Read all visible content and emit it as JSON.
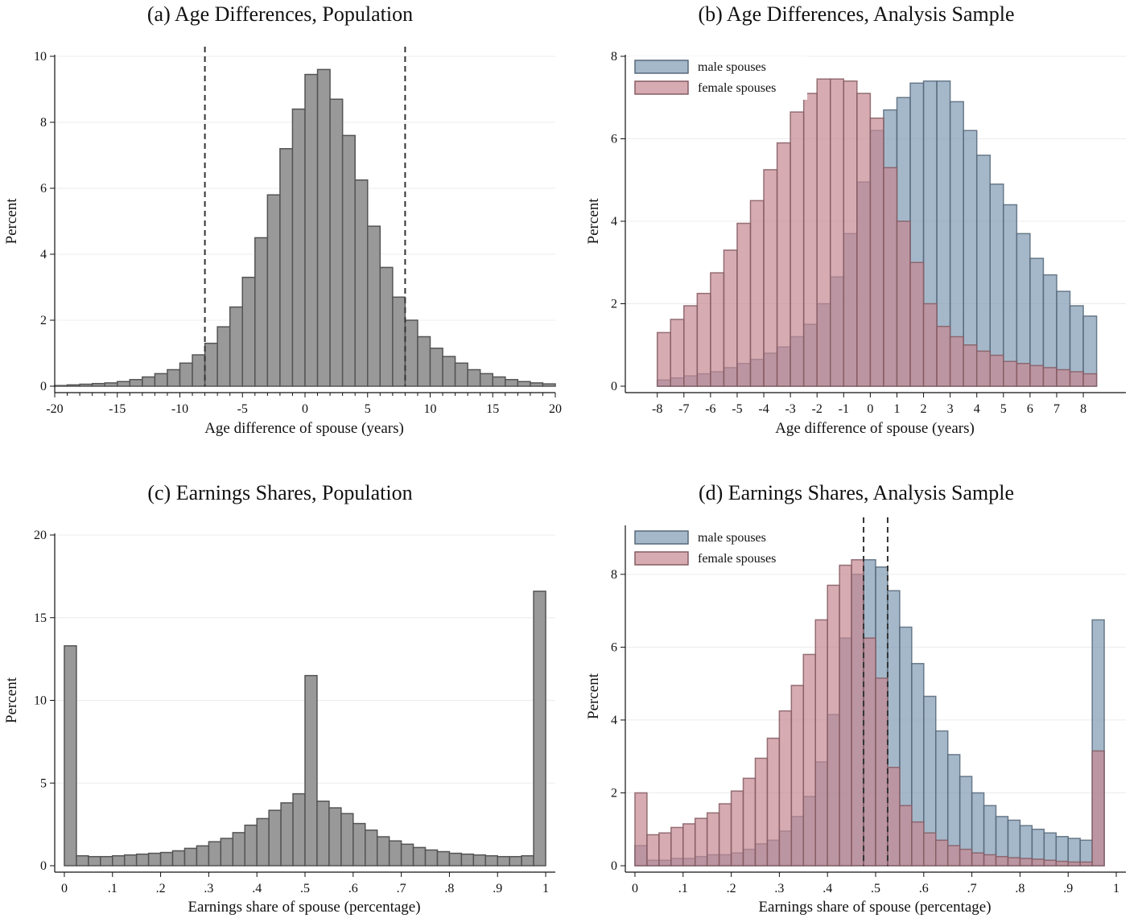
{
  "chart_data": [
    {
      "id": "a",
      "type": "bar",
      "title": "(a) Age Differences, Population",
      "xlabel": "Age difference of spouse (years)",
      "ylabel": "Percent",
      "xlim": [
        -20,
        20
      ],
      "ylim": [
        0,
        10
      ],
      "xticks": [
        -20,
        -15,
        -10,
        -5,
        0,
        5,
        10,
        15,
        20
      ],
      "xtick_labels": [
        "-20",
        "-15",
        "-10",
        "-5",
        "0",
        "5",
        "10",
        "15",
        "20"
      ],
      "yticks": [
        0,
        2,
        4,
        6,
        8,
        10
      ],
      "ytick_labels": [
        "0",
        "2",
        "4",
        "6",
        "8",
        "10"
      ],
      "grid": true,
      "minor_xticks": true,
      "vlines": [
        -8,
        8
      ],
      "bin_start": -20,
      "bin_width": 1,
      "series": [
        {
          "color": "#999999",
          "values": [
            0.02,
            0.04,
            0.06,
            0.08,
            0.1,
            0.14,
            0.2,
            0.28,
            0.38,
            0.5,
            0.7,
            0.95,
            1.3,
            1.8,
            2.4,
            3.3,
            4.5,
            5.8,
            7.2,
            8.4,
            9.45,
            9.6,
            8.7,
            7.6,
            6.25,
            4.85,
            3.6,
            2.7,
            2.0,
            1.5,
            1.15,
            0.9,
            0.7,
            0.5,
            0.38,
            0.28,
            0.2,
            0.14,
            0.1,
            0.07
          ]
        }
      ]
    },
    {
      "id": "b",
      "type": "bar",
      "title": "(b) Age Differences, Analysis Sample",
      "xlabel": "Age difference of spouse (years)",
      "ylabel": "Percent",
      "xlim": [
        -9.2,
        9.6
      ],
      "ylim": [
        0,
        8
      ],
      "xticks": [
        -8,
        -7,
        -6,
        -5,
        -4,
        -3,
        -2,
        -1,
        0,
        1,
        2,
        3,
        4,
        5,
        6,
        7,
        8
      ],
      "xtick_labels": [
        "-8",
        "-7",
        "-6",
        "-5",
        "-4",
        "-3",
        "-2",
        "-1",
        "0",
        "1",
        "2",
        "3",
        "4",
        "5",
        "6",
        "7",
        "8"
      ],
      "yticks": [
        0,
        2,
        4,
        6,
        8
      ],
      "ytick_labels": [
        "0",
        "2",
        "4",
        "6",
        "8"
      ],
      "grid": true,
      "bin_start": -8,
      "bin_width": 0.5,
      "legend_position": "top-left",
      "series": [
        {
          "name": "male spouses",
          "color": "#7f9ab3",
          "values": [
            0.15,
            0.2,
            0.25,
            0.3,
            0.35,
            0.45,
            0.55,
            0.65,
            0.8,
            0.95,
            1.2,
            1.5,
            2.0,
            2.65,
            3.7,
            4.95,
            6.2,
            6.7,
            7.0,
            7.35,
            7.4,
            7.4,
            6.9,
            6.2,
            5.6,
            4.9,
            4.4,
            3.7,
            3.1,
            2.7,
            2.3,
            1.95,
            1.7
          ]
        },
        {
          "name": "female spouses",
          "color": "#c48891",
          "values": [
            1.3,
            1.62,
            1.95,
            2.25,
            2.75,
            3.3,
            3.95,
            4.5,
            5.25,
            5.9,
            6.65,
            7.1,
            7.45,
            7.45,
            7.4,
            7.1,
            6.5,
            5.3,
            4.0,
            3.0,
            2.0,
            1.45,
            1.2,
            1.0,
            0.85,
            0.75,
            0.6,
            0.55,
            0.5,
            0.45,
            0.4,
            0.35,
            0.3
          ]
        }
      ]
    },
    {
      "id": "c",
      "type": "bar",
      "title": "(c) Earnings Shares, Population",
      "xlabel": "Earnings share of spouse (percentage)",
      "ylabel": "Percent",
      "xlim": [
        -0.02,
        1.02
      ],
      "ylim": [
        0,
        20
      ],
      "xticks": [
        0,
        0.1,
        0.2,
        0.3,
        0.4,
        0.5,
        0.6,
        0.7,
        0.8,
        0.9,
        1
      ],
      "xtick_labels": [
        "0",
        ".1",
        ".2",
        ".3",
        ".4",
        ".5",
        ".6",
        ".7",
        ".8",
        ".9",
        "1"
      ],
      "yticks": [
        0,
        5,
        10,
        15,
        20
      ],
      "ytick_labels": [
        "0",
        "5",
        "10",
        "15",
        "20"
      ],
      "grid": true,
      "bin_start": 0,
      "bin_width": 0.025,
      "series": [
        {
          "color": "#999999",
          "values": [
            13.3,
            0.6,
            0.55,
            0.55,
            0.6,
            0.65,
            0.7,
            0.75,
            0.8,
            0.9,
            1.05,
            1.2,
            1.45,
            1.65,
            2.0,
            2.45,
            2.85,
            3.35,
            3.8,
            4.35,
            11.5,
            3.9,
            3.5,
            3.15,
            2.55,
            2.15,
            1.75,
            1.5,
            1.3,
            1.1,
            0.95,
            0.85,
            0.75,
            0.7,
            0.65,
            0.6,
            0.55,
            0.55,
            0.6,
            16.6
          ]
        }
      ]
    },
    {
      "id": "d",
      "type": "bar",
      "title": "(d) Earnings Shares, Analysis Sample",
      "xlabel": "Earnings share of spouse (percentage)",
      "ylabel": "Percent",
      "xlim": [
        -0.02,
        1.02
      ],
      "ylim": [
        0,
        9.3
      ],
      "xticks": [
        0,
        0.1,
        0.2,
        0.3,
        0.4,
        0.5,
        0.6,
        0.7,
        0.8,
        0.9,
        1
      ],
      "xtick_labels": [
        "0",
        ".1",
        ".2",
        ".3",
        ".4",
        ".5",
        ".6",
        ".7",
        ".8",
        ".9",
        "1"
      ],
      "yticks": [
        0,
        2,
        4,
        6,
        8
      ],
      "ytick_labels": [
        "0",
        "2",
        "4",
        "6",
        "8"
      ],
      "grid": true,
      "vlines": [
        0.475,
        0.525
      ],
      "bin_start": 0,
      "bin_width": 0.025,
      "legend_position": "top-left",
      "series": [
        {
          "name": "male spouses",
          "color": "#7f9ab3",
          "values": [
            0.55,
            0.15,
            0.15,
            0.2,
            0.2,
            0.25,
            0.3,
            0.3,
            0.35,
            0.45,
            0.6,
            0.7,
            0.95,
            1.35,
            1.9,
            2.85,
            4.15,
            6.25,
            8.0,
            8.4,
            8.2,
            7.55,
            6.55,
            5.55,
            4.65,
            3.7,
            3.05,
            2.45,
            2.0,
            1.65,
            1.35,
            1.25,
            1.1,
            1.0,
            0.9,
            0.8,
            0.75,
            0.7,
            6.75
          ]
        },
        {
          "name": "female spouses",
          "color": "#c48891",
          "values": [
            2.0,
            0.85,
            0.9,
            1.05,
            1.15,
            1.3,
            1.45,
            1.7,
            2.05,
            2.4,
            2.95,
            3.5,
            4.25,
            4.95,
            5.8,
            6.75,
            7.7,
            8.25,
            8.4,
            6.25,
            5.15,
            2.7,
            1.65,
            1.2,
            0.9,
            0.7,
            0.55,
            0.45,
            0.35,
            0.3,
            0.25,
            0.22,
            0.2,
            0.18,
            0.15,
            0.12,
            0.1,
            0.1,
            3.15
          ]
        }
      ]
    }
  ]
}
